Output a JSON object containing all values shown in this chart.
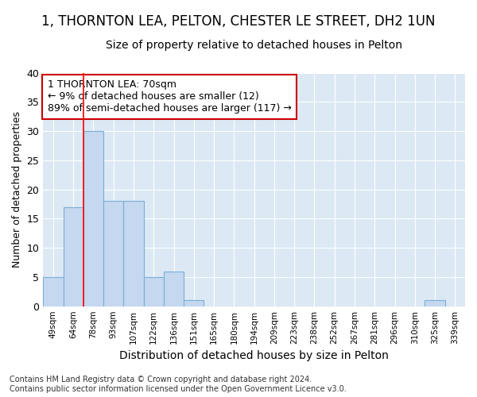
{
  "title": "1, THORNTON LEA, PELTON, CHESTER LE STREET, DH2 1UN",
  "subtitle": "Size of property relative to detached houses in Pelton",
  "xlabel": "Distribution of detached houses by size in Pelton",
  "ylabel": "Number of detached properties",
  "bar_labels": [
    "49sqm",
    "64sqm",
    "78sqm",
    "93sqm",
    "107sqm",
    "122sqm",
    "136sqm",
    "151sqm",
    "165sqm",
    "180sqm",
    "194sqm",
    "209sqm",
    "223sqm",
    "238sqm",
    "252sqm",
    "267sqm",
    "281sqm",
    "296sqm",
    "310sqm",
    "325sqm",
    "339sqm"
  ],
  "bar_values": [
    5,
    17,
    30,
    18,
    18,
    5,
    6,
    1,
    0,
    0,
    0,
    0,
    0,
    0,
    0,
    0,
    0,
    0,
    0,
    1,
    0
  ],
  "bar_color": "#c5d8f0",
  "bar_edge_color": "#7aadd4",
  "bar_width": 1.0,
  "ylim": [
    0,
    40
  ],
  "yticks": [
    0,
    5,
    10,
    15,
    20,
    25,
    30,
    35,
    40
  ],
  "red_line_x": 1.5,
  "annotation_text": "1 THORNTON LEA: 70sqm\n← 9% of detached houses are smaller (12)\n89% of semi-detached houses are larger (117) →",
  "annotation_box_color": "#ffffff",
  "annotation_box_edge": "#cc0000",
  "footer_text": "Contains HM Land Registry data © Crown copyright and database right 2024.\nContains public sector information licensed under the Open Government Licence v3.0.",
  "fig_background_color": "#ffffff",
  "plot_background_color": "#dce9f5",
  "grid_color": "#ffffff",
  "title_fontsize": 12,
  "subtitle_fontsize": 10,
  "ylabel_fontsize": 9,
  "xlabel_fontsize": 10,
  "tick_fontsize": 7.5,
  "annotation_fontsize": 9,
  "footer_fontsize": 7
}
